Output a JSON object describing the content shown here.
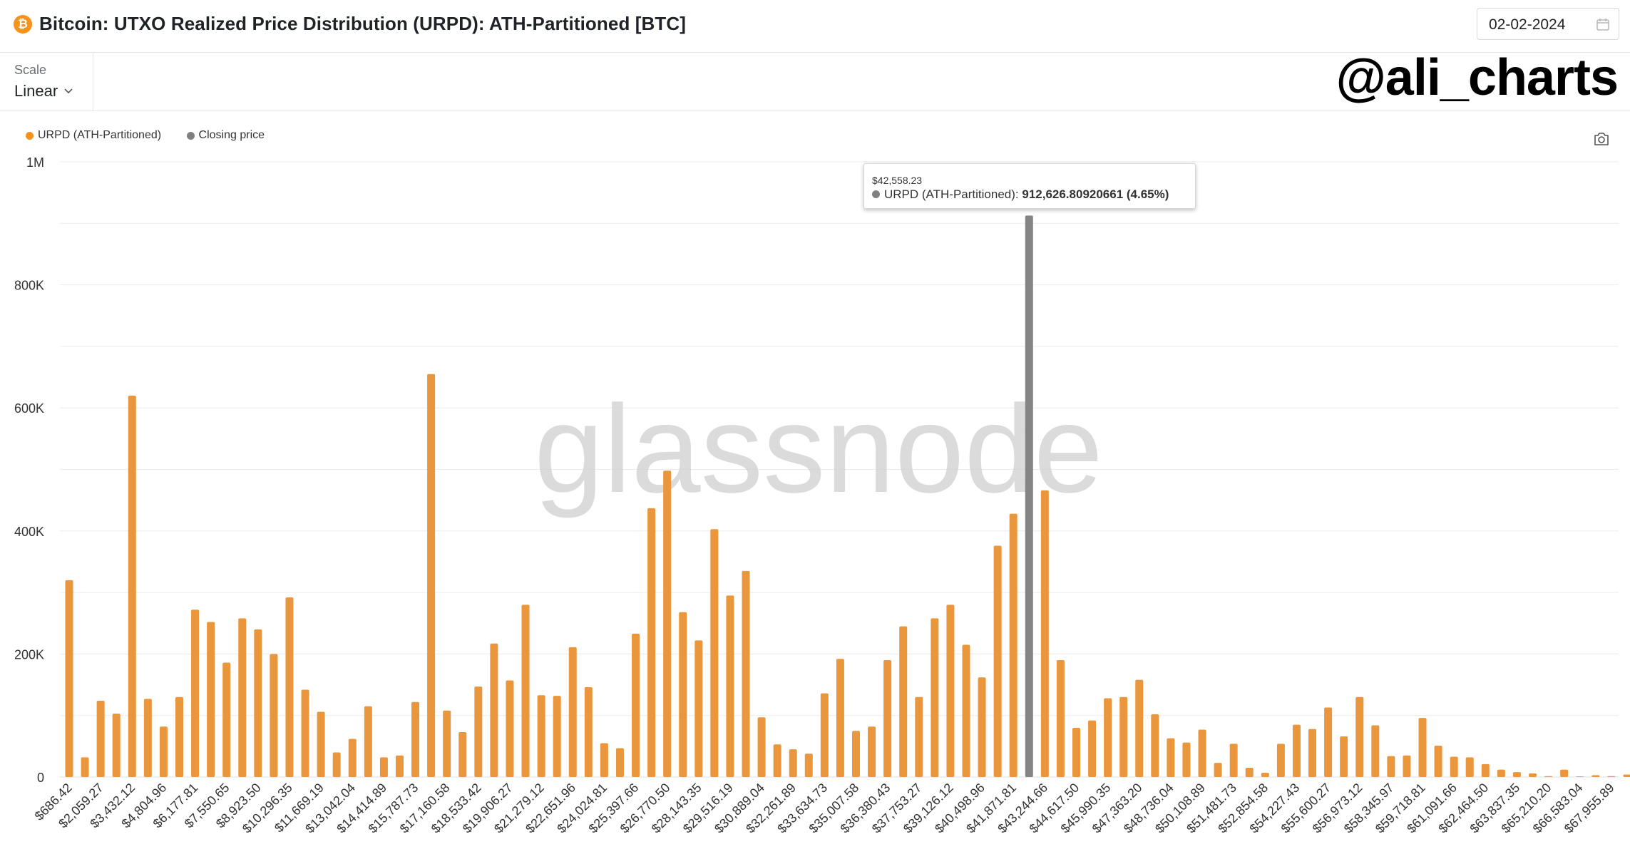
{
  "header": {
    "title": "Bitcoin: UTXO Realized Price Distribution (URPD): ATH-Partitioned [BTC]",
    "coin_icon": "bitcoin-icon",
    "coin_glyph": "₿",
    "date": "02-02-2024"
  },
  "toolbar": {
    "scale_label": "Scale",
    "scale_value": "Linear"
  },
  "watermark": {
    "handle": "@ali_charts",
    "brand": "glassnode"
  },
  "legend": {
    "items": [
      {
        "label": "URPD (ATH-Partitioned)",
        "color": "#f7931a"
      },
      {
        "label": "Closing price",
        "color": "#808080"
      }
    ]
  },
  "tooltip": {
    "title": "$42,558.23",
    "series": "URPD (ATH-Partitioned):",
    "value": "912,626.80920661 (4.65%)"
  },
  "colors": {
    "bar": "#e9963c",
    "highlight_bar": "#858585",
    "grid": "#ececec"
  },
  "chart_data": {
    "type": "bar",
    "title": "Bitcoin: UTXO Realized Price Distribution (URPD): ATH-Partitioned [BTC]",
    "xlabel": "",
    "ylabel": "",
    "ylim": [
      0,
      1000000
    ],
    "y_ticks": [
      "0",
      "200K",
      "400K",
      "600K",
      "800K",
      "1M"
    ],
    "y_tick_values": [
      0,
      200000,
      400000,
      600000,
      800000,
      1000000
    ],
    "x_tick_labels": [
      "$686.42",
      "$2,059.27",
      "$3,432.12",
      "$4,804.96",
      "$6,177.81",
      "$7,550.65",
      "$8,923.50",
      "$10,296.35",
      "$11,669.19",
      "$13,042.04",
      "$14,414.89",
      "$15,787.73",
      "$17,160.58",
      "$18,533.42",
      "$19,906.27",
      "$21,279.12",
      "$22,651.96",
      "$24,024.81",
      "$25,397.66",
      "$26,770.50",
      "$28,143.35",
      "$29,516.19",
      "$30,889.04",
      "$32,261.89",
      "$33,634.73",
      "$35,007.58",
      "$36,380.43",
      "$37,753.27",
      "$39,126.12",
      "$40,498.96",
      "$41,871.81",
      "$43,244.66",
      "$44,617.50",
      "$45,990.35",
      "$47,363.20",
      "$48,736.04",
      "$50,108.89",
      "$51,481.73",
      "$52,854.58",
      "$54,227.43",
      "$55,600.27",
      "$56,973.12",
      "$58,345.97",
      "$59,718.81",
      "$61,091.66",
      "$62,464.50",
      "$63,837.35",
      "$65,210.20",
      "$66,583.04",
      "$67,955.89"
    ],
    "highlight_index": 61,
    "closing_price": "$42,558.23",
    "series": [
      {
        "name": "URPD (ATH-Partitioned)",
        "values": [
          320000,
          32000,
          124000,
          103000,
          620000,
          127000,
          82000,
          130000,
          272000,
          252000,
          186000,
          258000,
          240000,
          200000,
          292000,
          142000,
          106000,
          40000,
          62000,
          115000,
          32000,
          35000,
          122000,
          655000,
          108000,
          73000,
          147000,
          217000,
          157000,
          280000,
          133000,
          132000,
          211000,
          146000,
          55000,
          47000,
          233000,
          437000,
          498000,
          268000,
          222000,
          403000,
          295000,
          335000,
          97000,
          53000,
          45000,
          38000,
          136000,
          192000,
          75000,
          82000,
          190000,
          245000,
          130000,
          258000,
          280000,
          215000,
          162000,
          376000,
          428000,
          912627,
          466000,
          190000,
          80000,
          92000,
          128000,
          130000,
          158000,
          102000,
          63000,
          56000,
          77000,
          23000,
          54000,
          15000,
          7000,
          54000,
          85000,
          78000,
          113000,
          66000,
          130000,
          84000,
          34000,
          35000,
          96000,
          51000,
          33000,
          32000,
          21000,
          12000,
          8000,
          6000,
          1500,
          12000,
          1000,
          3000,
          1500,
          4000
        ]
      }
    ],
    "grid": true,
    "legend_position": "top-left"
  }
}
